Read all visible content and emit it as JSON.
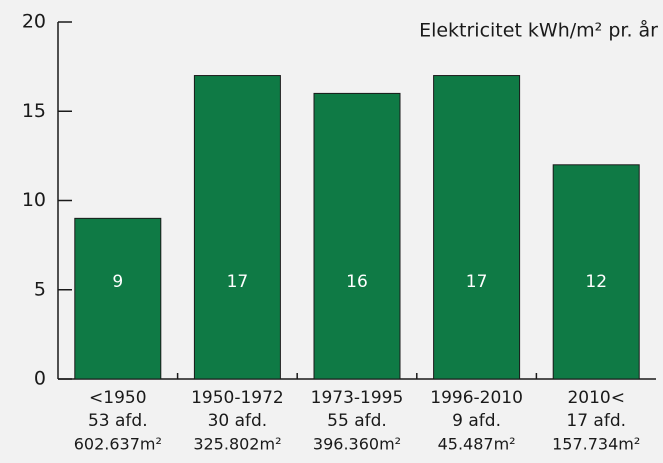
{
  "chart_data": {
    "type": "bar",
    "title": "Elektricitet kWh/m² pr. år",
    "categories": [
      "<1950",
      "1950-1972",
      "1973-1995",
      "1996-2010",
      "2010<"
    ],
    "departments": [
      "53 afd.",
      "30 afd.",
      "55 afd.",
      "9 afd.",
      "17 afd."
    ],
    "areas": [
      "602.637m²",
      "325.802m²",
      "396.360m²",
      "45.487m²",
      "157.734m²"
    ],
    "values": [
      9,
      17,
      16,
      17,
      12
    ],
    "color": "#0f7a45",
    "ylim": [
      0,
      20
    ],
    "yticks": [
      0,
      5,
      10,
      15,
      20
    ],
    "grid": false
  }
}
